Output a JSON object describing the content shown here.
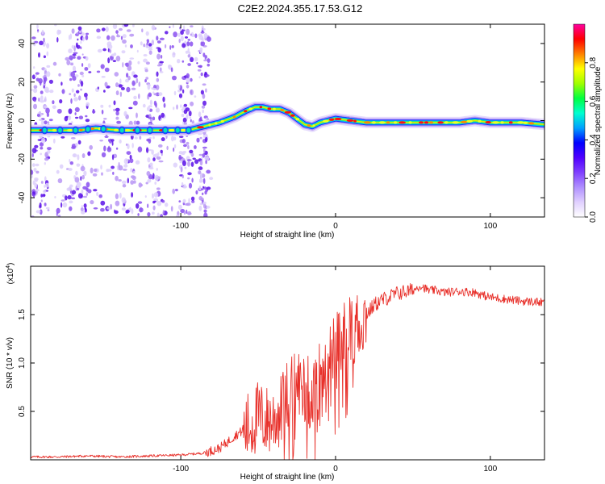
{
  "figure": {
    "title": "C2E2.2024.355.17.53.G12"
  },
  "chart_data": [
    {
      "type": "heatmap",
      "panel": "spectrogram",
      "xlabel": "Height of straight line (km)",
      "ylabel": "Frequency (Hz)",
      "xlim": [
        -197,
        135
      ],
      "ylim": [
        -50,
        50
      ],
      "xticks": [
        -100,
        0,
        100
      ],
      "xtick_labels": [
        "-100",
        "0",
        "100"
      ],
      "yticks": [
        -40,
        -20,
        0,
        20,
        40
      ],
      "ytick_labels": [
        "-40",
        "-20",
        "0",
        "20",
        "40"
      ],
      "grid": false,
      "noise_region_x": [
        -197,
        -80
      ],
      "ridge": {
        "x": [
          -195,
          -180,
          -165,
          -155,
          -140,
          -125,
          -110,
          -95,
          -85,
          -75,
          -65,
          -58,
          -52,
          -47,
          -42,
          -36,
          -30,
          -25,
          -20,
          -15,
          -10,
          -5,
          0,
          10,
          20,
          40,
          60,
          80,
          90,
          100,
          120,
          135
        ],
        "y": [
          -5,
          -5,
          -5,
          -4,
          -5,
          -5,
          -5,
          -5,
          -3,
          -1,
          2,
          5,
          7,
          7,
          6,
          6,
          4,
          1,
          -2,
          -3,
          -1,
          0,
          1,
          0,
          -1,
          -1,
          -1,
          -1,
          0,
          -1,
          -1,
          -2
        ]
      },
      "colorbar": {
        "label": "Normalized spectral amplitude",
        "range": [
          0,
          1
        ],
        "ticks": [
          0.0,
          0.2,
          0.4,
          0.6,
          0.8
        ],
        "tick_labels": [
          "0.0",
          "0.2",
          "0.4",
          "0.6",
          "0.8"
        ],
        "colors": [
          "#ffffff",
          "#e0d0ff",
          "#b090ff",
          "#8040ff",
          "#5000ff",
          "#0000ff",
          "#00a0ff",
          "#00ffd0",
          "#00ff40",
          "#a0ff00",
          "#ffff00",
          "#ff8000",
          "#ff0000",
          "#ff00a0"
        ]
      }
    },
    {
      "type": "line",
      "panel": "snr",
      "xlabel": "Height of straight line (km)",
      "ylabel": "SNR (10 * v/v)",
      "scale_label": "(x10",
      "scale_exponent": "4",
      "scale_suffix": ")",
      "xlim": [
        -197,
        135
      ],
      "ylim": [
        0,
        2.0
      ],
      "xticks": [
        -100,
        0,
        100
      ],
      "xtick_labels": [
        "-100",
        "0",
        "100"
      ],
      "yticks": [
        0.5,
        1.0,
        1.5
      ],
      "ytick_labels": [
        "0.5",
        "1.0",
        "1.5"
      ],
      "grid": false,
      "color": "#e8302a",
      "series": [
        {
          "x": [
            -197,
            -180,
            -160,
            -140,
            -120,
            -100,
            -85,
            -75,
            -70,
            -65,
            -60,
            -55,
            -50,
            -45,
            -40,
            -35,
            -30,
            -25,
            -20,
            -15,
            -10,
            -5,
            0,
            5,
            10,
            15,
            20,
            25,
            30,
            40,
            50,
            55,
            60,
            65,
            70,
            80,
            90,
            95,
            100,
            110,
            120,
            130,
            135
          ],
          "y": [
            0.03,
            0.03,
            0.04,
            0.03,
            0.04,
            0.05,
            0.07,
            0.12,
            0.18,
            0.25,
            0.3,
            0.35,
            0.45,
            0.4,
            0.42,
            0.5,
            0.7,
            0.8,
            0.75,
            0.7,
            0.95,
            1.05,
            1.15,
            1.25,
            1.35,
            1.4,
            1.5,
            1.6,
            1.65,
            1.72,
            1.75,
            1.8,
            1.75,
            1.75,
            1.73,
            1.74,
            1.73,
            1.7,
            1.68,
            1.66,
            1.64,
            1.63,
            1.62
          ]
        }
      ]
    }
  ]
}
